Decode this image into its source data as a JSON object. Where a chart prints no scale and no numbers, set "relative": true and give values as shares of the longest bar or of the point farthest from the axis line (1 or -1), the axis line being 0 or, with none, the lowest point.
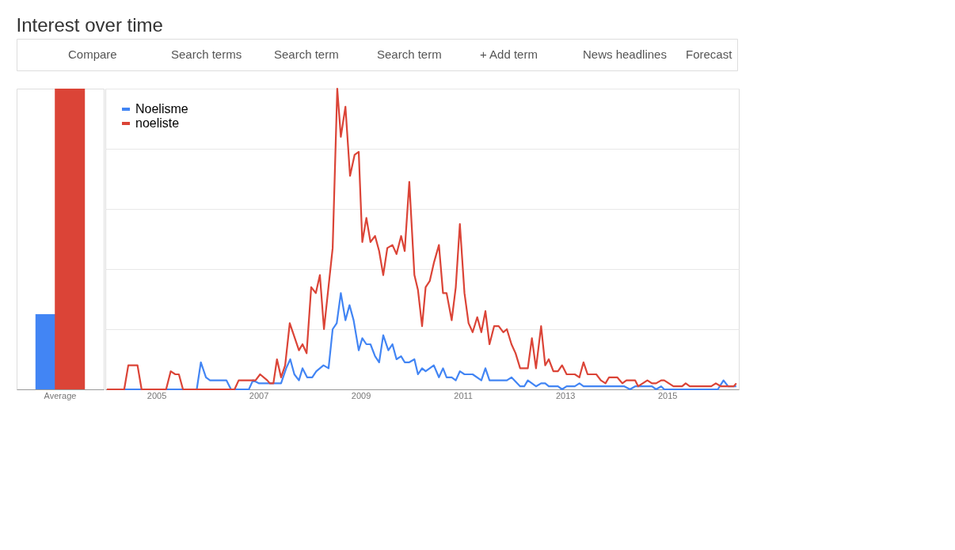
{
  "chart_data": [
    {
      "type": "bar",
      "relative": true,
      "categories": [
        "Average"
      ],
      "series": [
        {
          "color": "#4285f4",
          "values": [
            0.25
          ]
        },
        {
          "color": "#db4437",
          "values": [
            1
          ]
        }
      ]
    },
    {
      "type": "line",
      "title": "Interest over time",
      "relative": true,
      "grid": "y",
      "legend": "top left",
      "annotations": [
        "Compare",
        "Search terms",
        "Search term",
        "Search term",
        "+ Add term",
        "News headlines",
        "Forecast"
      ],
      "xlim": [
        2004.0,
        2016.4
      ],
      "xticks": [
        2005,
        2007,
        2009,
        2011,
        2013,
        2015
      ],
      "series": [
        {
          "name": "Noelisme",
          "color": "#4285f4",
          "x": [
            2004.03,
            2005.79,
            2005.87,
            2005.97,
            2006.05,
            2006.37,
            2006.46,
            2006.81,
            2006.89,
            2007.01,
            2007.12,
            2007.44,
            2007.54,
            2007.62,
            2007.7,
            2007.79,
            2007.86,
            2007.95,
            2008.05,
            2008.13,
            2008.27,
            2008.37,
            2008.45,
            2008.53,
            2008.61,
            2008.7,
            2008.78,
            2008.86,
            2008.96,
            2009.03,
            2009.11,
            2009.19,
            2009.28,
            2009.36,
            2009.44,
            2009.54,
            2009.62,
            2009.7,
            2009.79,
            2009.86,
            2009.95,
            2010.05,
            2010.12,
            2010.2,
            2010.27,
            2010.43,
            2010.53,
            2010.61,
            2010.68,
            2010.78,
            2010.86,
            2010.94,
            2011.03,
            2011.19,
            2011.36,
            2011.44,
            2011.52,
            2011.86,
            2011.95,
            2012.12,
            2012.2,
            2012.27,
            2012.43,
            2012.53,
            2012.61,
            2012.68,
            2012.86,
            2012.94,
            2013.03,
            2013.19,
            2013.28,
            2013.36,
            2014.16,
            2014.27,
            2014.37,
            2014.7,
            2014.78,
            2014.88,
            2014.94,
            2015.99,
            2016.1,
            2016.19,
            2016.35
          ],
          "values": [
            0,
            0,
            0.09,
            0.04,
            0.03,
            0.03,
            0,
            0,
            0.03,
            0.02,
            0.02,
            0.02,
            0.07,
            0.1,
            0.05,
            0.03,
            0.07,
            0.04,
            0.04,
            0.06,
            0.08,
            0.07,
            0.2,
            0.22,
            0.32,
            0.23,
            0.28,
            0.23,
            0.13,
            0.17,
            0.15,
            0.15,
            0.11,
            0.09,
            0.18,
            0.13,
            0.15,
            0.1,
            0.11,
            0.09,
            0.09,
            0.1,
            0.05,
            0.07,
            0.06,
            0.08,
            0.04,
            0.07,
            0.04,
            0.04,
            0.03,
            0.06,
            0.05,
            0.05,
            0.03,
            0.07,
            0.03,
            0.03,
            0.04,
            0.01,
            0.01,
            0.03,
            0.01,
            0.02,
            0.02,
            0.01,
            0.01,
            0,
            0.01,
            0.01,
            0.02,
            0.01,
            0.01,
            0,
            0.01,
            0.01,
            0,
            0.01,
            0,
            0,
            0.03,
            0.01,
            0.01
          ]
        },
        {
          "name": "noeliste",
          "color": "#db4437",
          "x": [
            2004.03,
            2004.37,
            2004.45,
            2004.63,
            2004.71,
            2005.19,
            2005.28,
            2005.37,
            2005.44,
            2005.52,
            2006.53,
            2006.61,
            2006.94,
            2007.03,
            2007.17,
            2007.22,
            2007.29,
            2007.36,
            2007.44,
            2007.52,
            2007.61,
            2007.79,
            2007.86,
            2007.94,
            2008.03,
            2008.12,
            2008.2,
            2008.28,
            2008.45,
            2008.54,
            2008.61,
            2008.7,
            2008.79,
            2008.88,
            2008.96,
            2009.03,
            2009.11,
            2009.19,
            2009.28,
            2009.36,
            2009.44,
            2009.52,
            2009.62,
            2009.7,
            2009.79,
            2009.86,
            2009.95,
            2010.05,
            2010.12,
            2010.2,
            2010.27,
            2010.35,
            2010.43,
            2010.53,
            2010.61,
            2010.68,
            2010.78,
            2010.86,
            2010.94,
            2011.03,
            2011.11,
            2011.19,
            2011.28,
            2011.36,
            2011.44,
            2011.52,
            2011.61,
            2011.7,
            2011.79,
            2011.86,
            2011.95,
            2012.03,
            2012.12,
            2012.27,
            2012.35,
            2012.43,
            2012.53,
            2012.61,
            2012.68,
            2012.77,
            2012.86,
            2012.94,
            2013.03,
            2013.19,
            2013.28,
            2013.36,
            2013.44,
            2013.61,
            2013.7,
            2013.79,
            2013.86,
            2014.02,
            2014.12,
            2014.2,
            2014.37,
            2014.43,
            2014.61,
            2014.7,
            2014.78,
            2014.88,
            2014.94,
            2015.03,
            2015.12,
            2015.29,
            2015.36,
            2015.44,
            2015.86,
            2015.95,
            2016.05,
            2016.3,
            2016.35
          ],
          "values": [
            0,
            0,
            0.08,
            0.08,
            0,
            0,
            0.06,
            0.05,
            0.05,
            0,
            0,
            0.03,
            0.03,
            0.05,
            0.03,
            0.02,
            0.02,
            0.1,
            0.04,
            0.08,
            0.22,
            0.13,
            0.15,
            0.12,
            0.34,
            0.32,
            0.38,
            0.2,
            0.47,
            1,
            0.84,
            0.94,
            0.71,
            0.78,
            0.79,
            0.49,
            0.57,
            0.49,
            0.51,
            0.46,
            0.38,
            0.47,
            0.48,
            0.45,
            0.51,
            0.46,
            0.69,
            0.38,
            0.33,
            0.21,
            0.34,
            0.36,
            0.42,
            0.48,
            0.32,
            0.32,
            0.23,
            0.34,
            0.55,
            0.32,
            0.22,
            0.19,
            0.24,
            0.19,
            0.26,
            0.15,
            0.21,
            0.21,
            0.19,
            0.2,
            0.15,
            0.12,
            0.07,
            0.07,
            0.17,
            0.07,
            0.21,
            0.08,
            0.1,
            0.06,
            0.06,
            0.08,
            0.05,
            0.05,
            0.04,
            0.09,
            0.05,
            0.05,
            0.03,
            0.02,
            0.04,
            0.04,
            0.02,
            0.03,
            0.03,
            0.01,
            0.03,
            0.02,
            0.02,
            0.03,
            0.03,
            0.02,
            0.01,
            0.01,
            0.02,
            0.01,
            0.01,
            0.02,
            0.01,
            0.01,
            0.02
          ]
        }
      ]
    }
  ]
}
